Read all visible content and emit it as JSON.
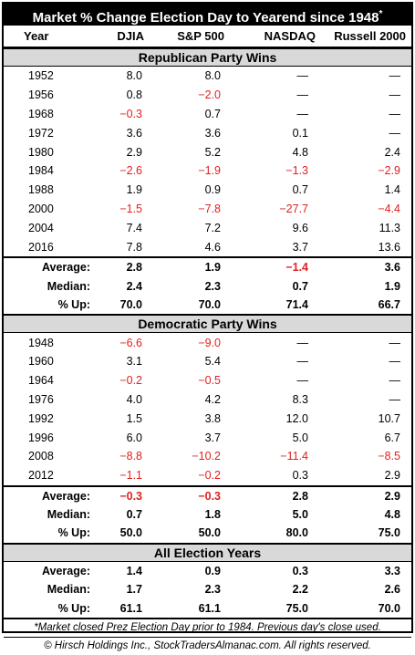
{
  "title": "Market % Change Election Day to Yearend since 1948",
  "title_mark": "*",
  "headers": [
    "Year",
    "DJIA",
    "S&P 500",
    "NASDAQ",
    "Russell 2000"
  ],
  "sections": [
    {
      "name": "Republican Party Wins",
      "rows": [
        [
          "1952",
          "8.0",
          "8.0",
          "—",
          "—"
        ],
        [
          "1956",
          "0.8",
          "−2.0",
          "—",
          "—"
        ],
        [
          "1968",
          "−0.3",
          "0.7",
          "—",
          "—"
        ],
        [
          "1972",
          "3.6",
          "3.6",
          "0.1",
          "—"
        ],
        [
          "1980",
          "2.9",
          "5.2",
          "4.8",
          "2.4"
        ],
        [
          "1984",
          "−2.6",
          "−1.9",
          "−1.3",
          "−2.9"
        ],
        [
          "1988",
          "1.9",
          "0.9",
          "0.7",
          "1.4"
        ],
        [
          "2000",
          "−1.5",
          "−7.8",
          "−27.7",
          "−4.4"
        ],
        [
          "2004",
          "7.4",
          "7.2",
          "9.6",
          "11.3"
        ],
        [
          "2016",
          "7.8",
          "4.6",
          "3.7",
          "13.6"
        ]
      ],
      "summary": [
        [
          "Average:",
          "2.8",
          "1.9",
          "−1.4",
          "3.6"
        ],
        [
          "Median:",
          "2.4",
          "2.3",
          "0.7",
          "1.9"
        ],
        [
          "% Up:",
          "70.0",
          "70.0",
          "71.4",
          "66.7"
        ]
      ]
    },
    {
      "name": "Democratic Party Wins",
      "rows": [
        [
          "1948",
          "−6.6",
          "−9.0",
          "—",
          "—"
        ],
        [
          "1960",
          "3.1",
          "5.4",
          "—",
          "—"
        ],
        [
          "1964",
          "−0.2",
          "−0.5",
          "—",
          "—"
        ],
        [
          "1976",
          "4.0",
          "4.2",
          "8.3",
          "—"
        ],
        [
          "1992",
          "1.5",
          "3.8",
          "12.0",
          "10.7"
        ],
        [
          "1996",
          "6.0",
          "3.7",
          "5.0",
          "6.7"
        ],
        [
          "2008",
          "−8.8",
          "−10.2",
          "−11.4",
          "−8.5"
        ],
        [
          "2012",
          "−1.1",
          "−0.2",
          "0.3",
          "2.9"
        ]
      ],
      "summary": [
        [
          "Average:",
          "−0.3",
          "−0.3",
          "2.8",
          "2.9"
        ],
        [
          "Median:",
          "0.7",
          "1.8",
          "5.0",
          "4.8"
        ],
        [
          "% Up:",
          "50.0",
          "50.0",
          "80.0",
          "75.0"
        ]
      ]
    },
    {
      "name": "All Election Years",
      "rows": [],
      "summary": [
        [
          "Average:",
          "1.4",
          "0.9",
          "0.3",
          "3.3"
        ],
        [
          "Median:",
          "1.7",
          "2.3",
          "2.2",
          "2.6"
        ],
        [
          "% Up:",
          "61.1",
          "61.1",
          "75.0",
          "70.0"
        ]
      ]
    }
  ],
  "footnote": "*Market closed Prez Election Day prior to 1984. Previous day's close used.",
  "copyright": "© Hirsch Holdings Inc., StockTradersAlmanac.com. All rights reserved.",
  "colors": {
    "negative": "#e02020",
    "section_bg": "#d9d9d9",
    "title_bg": "#000000"
  }
}
